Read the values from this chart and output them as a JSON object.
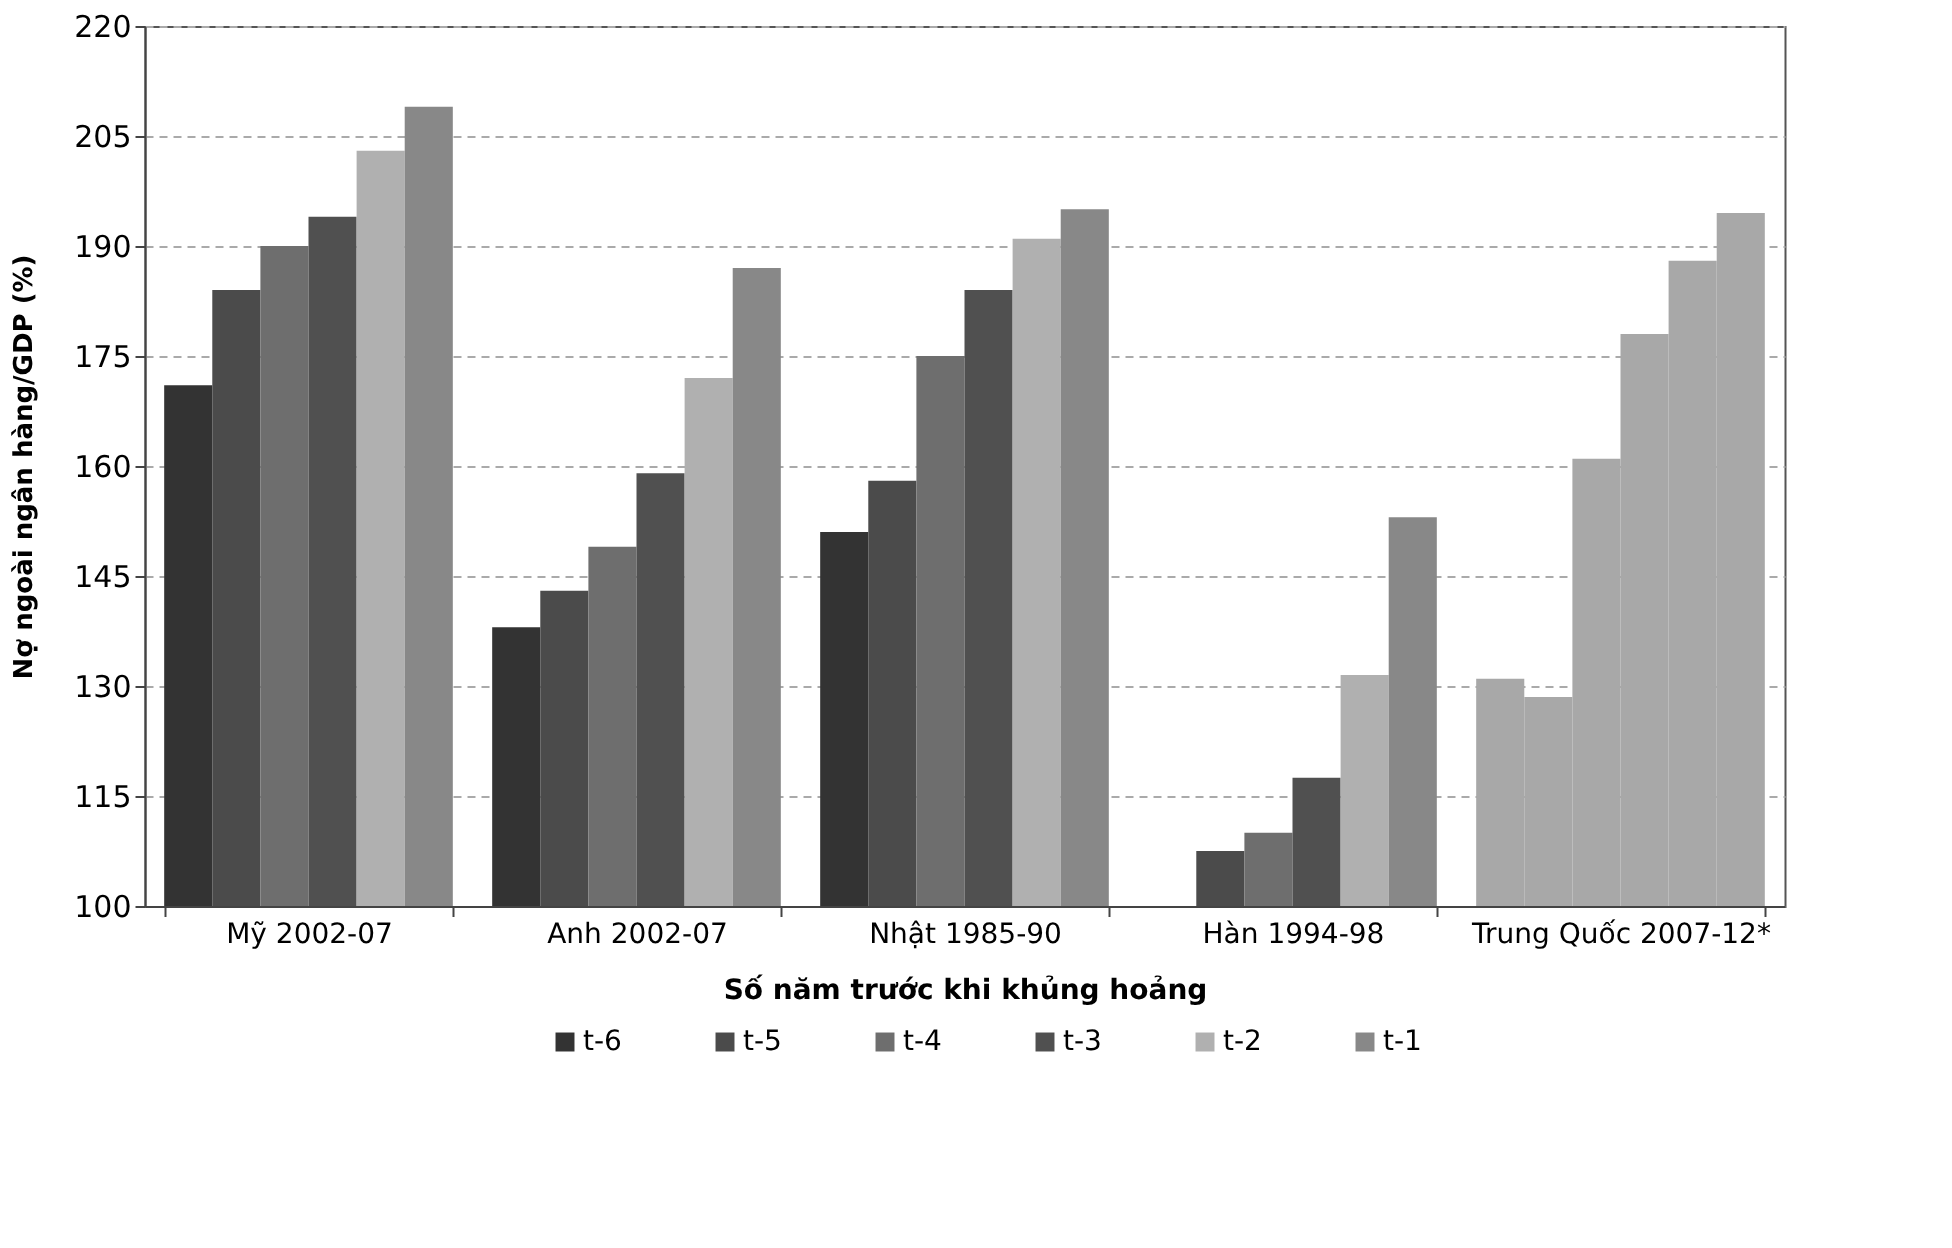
{
  "chart_data": {
    "type": "bar",
    "xlabel": "Số năm trước khi khủng hoảng",
    "ylabel": "Nợ ngoài ngân hàng/GDP (%)",
    "categories": [
      "Mỹ 2002-07",
      "Anh 2002-07",
      "Nhật 1985-90",
      "Hàn 1994-98",
      "Trung Quốc 2007-12*"
    ],
    "series": [
      {
        "name": "t-6",
        "color": "#333333",
        "colors": [
          "#333333",
          "#333333",
          "#333333",
          "#333333",
          "#a8a8a8"
        ],
        "values": [
          171,
          138,
          151,
          null,
          131
        ]
      },
      {
        "name": "t-5",
        "color": "#4b4b4b",
        "colors": [
          "#4b4b4b",
          "#4b4b4b",
          "#4b4b4b",
          "#4b4b4b",
          "#a8a8a8"
        ],
        "values": [
          184,
          143,
          158,
          107.5,
          128.5
        ]
      },
      {
        "name": "t-4",
        "color": "#6e6e6e",
        "colors": [
          "#6e6e6e",
          "#6e6e6e",
          "#6e6e6e",
          "#6e6e6e",
          "#a8a8a8"
        ],
        "values": [
          190,
          149,
          175,
          110,
          161
        ]
      },
      {
        "name": "t-3",
        "color": "#505050",
        "colors": [
          "#505050",
          "#505050",
          "#505050",
          "#505050",
          "#a8a8a8"
        ],
        "values": [
          194,
          159,
          184,
          117.5,
          178
        ]
      },
      {
        "name": "t-2",
        "color": "#b0b0b0",
        "colors": [
          "#b0b0b0",
          "#b0b0b0",
          "#b0b0b0",
          "#b0b0b0",
          "#a8a8a8"
        ],
        "values": [
          203,
          172,
          191,
          131.5,
          188
        ]
      },
      {
        "name": "t-1",
        "color": "#888888",
        "colors": [
          "#888888",
          "#888888",
          "#888888",
          "#888888",
          "#a8a8a8"
        ],
        "values": [
          209,
          187,
          195,
          153,
          194.5
        ]
      }
    ],
    "ylim": [
      100,
      220
    ],
    "yticks": [
      100,
      115,
      130,
      145,
      160,
      175,
      190,
      205,
      220
    ],
    "grid": "y",
    "legend": "bottom"
  }
}
